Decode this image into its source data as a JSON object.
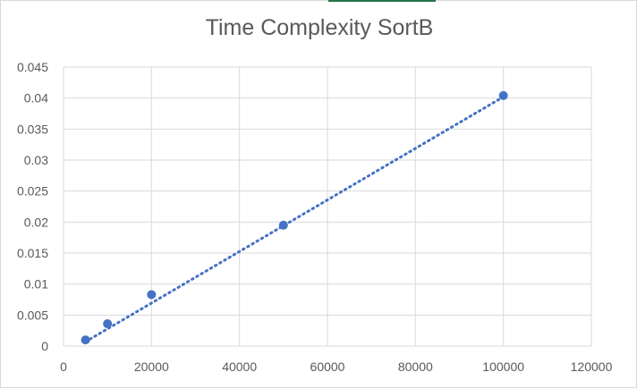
{
  "chart_data": {
    "type": "scatter",
    "title": "Time Complexity SortB",
    "xlabel": "",
    "ylabel": "",
    "xlim": [
      0,
      120000
    ],
    "ylim": [
      0,
      0.045
    ],
    "x_ticks": [
      0,
      20000,
      40000,
      60000,
      80000,
      100000,
      120000
    ],
    "x_tick_labels": [
      "0",
      "20000",
      "40000",
      "60000",
      "80000",
      "100000",
      "120000"
    ],
    "y_ticks": [
      0,
      0.005,
      0.01,
      0.015,
      0.02,
      0.025,
      0.03,
      0.035,
      0.04,
      0.045
    ],
    "y_tick_labels": [
      "0",
      "0.005",
      "0.01",
      "0.015",
      "0.02",
      "0.025",
      "0.03",
      "0.035",
      "0.04",
      "0.045"
    ],
    "grid": true,
    "legend": "none",
    "series": [
      {
        "x": [
          5000,
          10000,
          20000,
          50000,
          100000
        ],
        "y": [
          0.001,
          0.0036,
          0.0083,
          0.0195,
          0.0404
        ],
        "color": "#4472C4"
      }
    ],
    "trendline": {
      "type": "linear",
      "style": "dotted",
      "color": "#4472C4",
      "from": [
        5000,
        0.0007
      ],
      "to": [
        100000,
        0.0402
      ]
    }
  },
  "colors": {
    "grid": "#d9d9d9",
    "text": "#595959",
    "border": "#d9d9d9",
    "accent": "#217346"
  }
}
